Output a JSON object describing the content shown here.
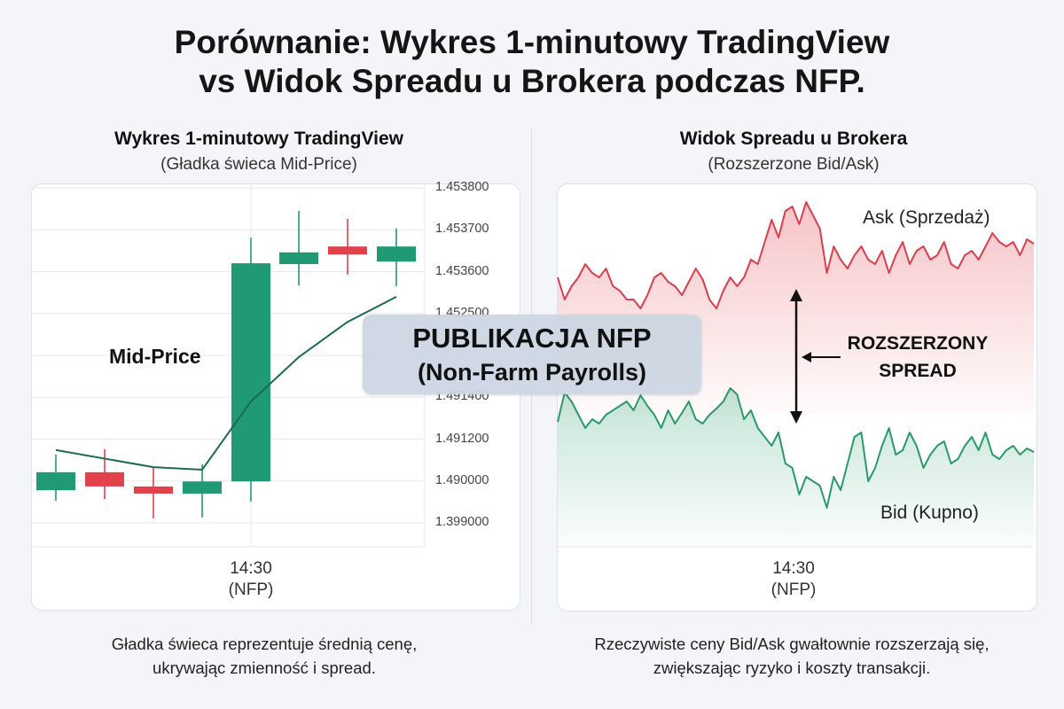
{
  "title_lines": [
    "Porównanie: Wykres 1-minutowy TradingView",
    "vs Widok Spreadu u Brokera podczas NFP."
  ],
  "left_panel": {
    "title": "Wykres 1-minutowy TradingView",
    "subtitle": "(Gładka świeca Mid-Price)",
    "caption_lines": [
      "Gładka świeca reprezentuje średnią cenę,",
      "ukrywając zmienność i spread."
    ]
  },
  "right_panel": {
    "title": "Widok Spreadu u Brokera",
    "subtitle": "(Rozszerzone Bid/Ask)",
    "caption_lines": [
      "Rzeczywiste ceny Bid/Ask gwałtownie rozszerzają się,",
      "zwiększając ryzyko i koszty transakcji."
    ]
  },
  "overlay": {
    "line1": "PUBLIKACJA NFP",
    "line2": "(Non-Farm Payrolls)"
  },
  "colors": {
    "up": "#1f9a74",
    "down": "#e0414b",
    "ask": "#d9404c",
    "bid": "#2a9a6c",
    "mid_line": "#1d6b52"
  },
  "chart_data": [
    {
      "type": "candlestick",
      "title": "Wykres 1-minutowy TradingView",
      "x_label": [
        "14:30",
        "(NFP)"
      ],
      "event_index": 4,
      "y_ticks": [
        {
          "level": 8,
          "label": "1.453800"
        },
        {
          "level": 7,
          "label": "1.453700"
        },
        {
          "level": 6,
          "label": "1.453600"
        },
        {
          "level": 5,
          "label": "1.452500"
        },
        {
          "level": 3,
          "label": "1.491400"
        },
        {
          "level": 2,
          "label": "1.491200"
        },
        {
          "level": 1,
          "label": "1.490000"
        },
        {
          "level": 0,
          "label": "1.399000"
        }
      ],
      "grid": true,
      "candles": [
        {
          "o": 0.78,
          "h": 1.63,
          "l": 0.53,
          "c": 1.21
        },
        {
          "o": 1.21,
          "h": 1.76,
          "l": 0.57,
          "c": 0.87
        },
        {
          "o": 0.87,
          "h": 1.31,
          "l": 0.11,
          "c": 0.7
        },
        {
          "o": 0.7,
          "h": 1.4,
          "l": 0.13,
          "c": 0.99
        },
        {
          "o": 0.99,
          "h": 6.81,
          "l": 0.51,
          "c": 6.2
        },
        {
          "o": 6.18,
          "h": 7.45,
          "l": 5.67,
          "c": 6.46
        },
        {
          "o": 6.6,
          "h": 7.26,
          "l": 5.93,
          "c": 6.41
        },
        {
          "o": 6.24,
          "h": 7.03,
          "l": 5.65,
          "c": 6.6
        }
      ],
      "mid_price": {
        "label": "Mid-Price",
        "values": [
          1.74,
          null,
          1.33,
          1.27,
          2.9,
          3.96,
          4.8,
          5.4
        ]
      }
    },
    {
      "type": "line",
      "title": "Widok Spreadu u Brokera",
      "x_label": [
        "14:30",
        "(NFP)"
      ],
      "event_fraction": 0.5,
      "spread_label": [
        "ROZSZERZONY",
        "SPREAD"
      ],
      "series": [
        {
          "name": "Ask (Sprzedaż)",
          "values": [
            287,
            262,
            277,
            287,
            302,
            292,
            287,
            297,
            277,
            272,
            262,
            262,
            252,
            267,
            287,
            292,
            282,
            277,
            267,
            282,
            297,
            285,
            262,
            252,
            272,
            287,
            277,
            287,
            307,
            302,
            327,
            352,
            332,
            362,
            367,
            347,
            372,
            357,
            342,
            292,
            322,
            307,
            297,
            312,
            322,
            307,
            302,
            317,
            292,
            312,
            327,
            302,
            317,
            322,
            307,
            312,
            327,
            302,
            297,
            312,
            317,
            307,
            322,
            337,
            327,
            322,
            327,
            312,
            330,
            325
          ]
        },
        {
          "name": "Bid (Kupno)",
          "values": [
            124,
            157,
            147,
            132,
            117,
            127,
            122,
            132,
            137,
            142,
            147,
            137,
            154,
            142,
            132,
            117,
            137,
            122,
            134,
            147,
            127,
            122,
            132,
            139,
            147,
            162,
            155,
            127,
            137,
            117,
            107,
            97,
            112,
            77,
            72,
            42,
            62,
            57,
            52,
            27,
            62,
            47,
            77,
            107,
            112,
            57,
            72,
            97,
            117,
            87,
            92,
            112,
            97,
            72,
            87,
            97,
            102,
            77,
            82,
            97,
            107,
            92,
            112,
            87,
            82,
            92,
            97,
            87,
            94,
            90
          ]
        }
      ]
    }
  ]
}
